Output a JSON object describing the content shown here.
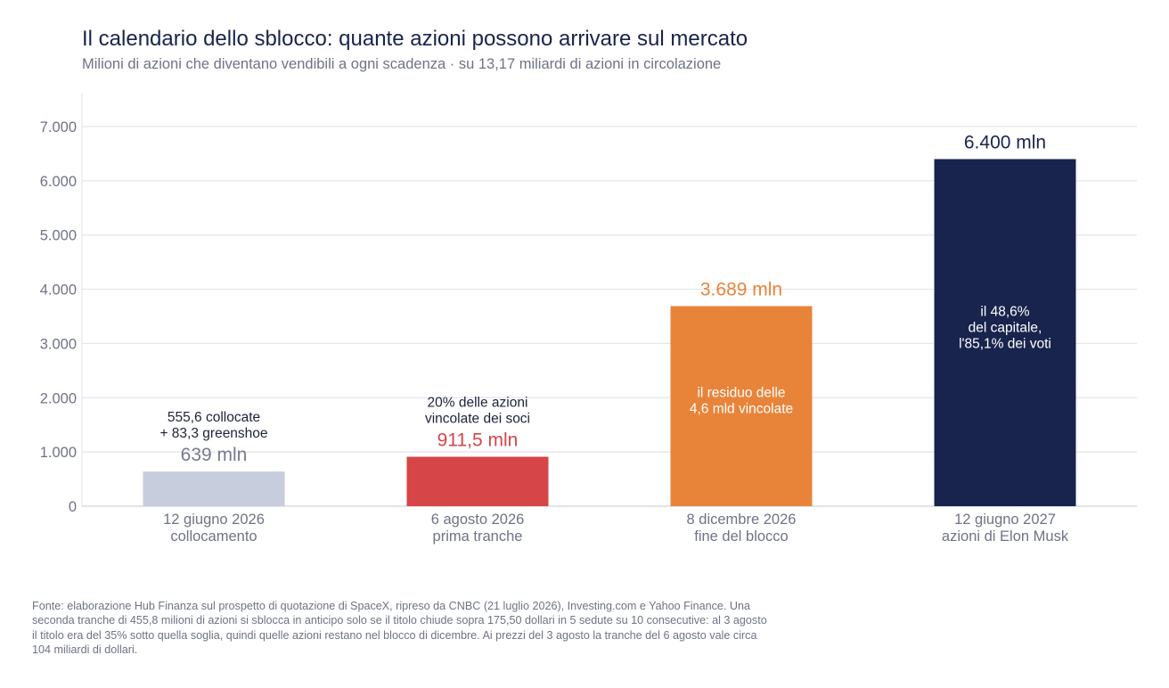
{
  "title": "Il calendario dello sblocco: quante azioni possono arrivare sul mercato",
  "subtitle": "Milioni di azioni che diventano vendibili a ogni scadenza · su 13,17 miliardi di azioni in circolazione",
  "source": "Fonte: elaborazione Hub Finanza sul prospetto di quotazione di SpaceX, ripreso da CNBC (21 luglio 2026), Investing.com e Yahoo Finance. Una seconda tranche di 455,8 milioni di azioni si sblocca in anticipo solo se il titolo chiude sopra 175,50 dollari in 5 sedute su 10 consecutive: al 3 agosto il titolo era del 35% sotto quella soglia, quindi quelle azioni restano nel blocco di dicembre. Ai prezzi del 3 agosto la tranche del 6 agosto vale circa 104 miliardi di dollari.",
  "chart_data": {
    "type": "bar",
    "title": "Il calendario dello sblocco: quante azioni possono arrivare sul mercato",
    "subtitle": "Milioni di azioni che diventano vendibili a ogni scadenza · su 13,17 miliardi di azioni in circolazione",
    "ylim": [
      0,
      7000
    ],
    "yticks": [
      0,
      1000,
      2000,
      3000,
      4000,
      5000,
      6000,
      7000
    ],
    "ytick_labels": [
      "0",
      "1.000",
      "2.000",
      "3.000",
      "4.000",
      "5.000",
      "6.000",
      "7.000"
    ],
    "grid": true,
    "bars": [
      {
        "category": [
          "12 giugno 2026",
          "collocamento"
        ],
        "value": 639,
        "value_label": "639 mln",
        "color": "#c7cddd",
        "label_color": "#767b8d",
        "annotation_above": [
          "555,6 collocate",
          "+ 83,3 greenshoe"
        ],
        "annotation_inside": []
      },
      {
        "category": [
          "6 agosto 2026",
          "prima tranche"
        ],
        "value": 911.5,
        "value_label": "911,5 mln",
        "color": "#d64547",
        "label_color": "#d64547",
        "annotation_above": [
          "20% delle azioni",
          "vincolate dei soci"
        ],
        "annotation_inside": []
      },
      {
        "category": [
          "8 dicembre 2026",
          "fine del blocco"
        ],
        "value": 3689,
        "value_label": "3.689 mln",
        "color": "#e8843a",
        "label_color": "#e8843a",
        "annotation_above": [],
        "annotation_inside": [
          "il residuo delle",
          "4,6 mld vincolate"
        ]
      },
      {
        "category": [
          "12 giugno 2027",
          "azioni di Elon Musk"
        ],
        "value": 6400,
        "value_label": "6.400 mln",
        "color": "#18244d",
        "label_color": "#18244d",
        "annotation_above": [],
        "annotation_inside": [
          "il 48,6%",
          "del capitale,",
          "l'85,1% dei voti"
        ]
      }
    ]
  }
}
